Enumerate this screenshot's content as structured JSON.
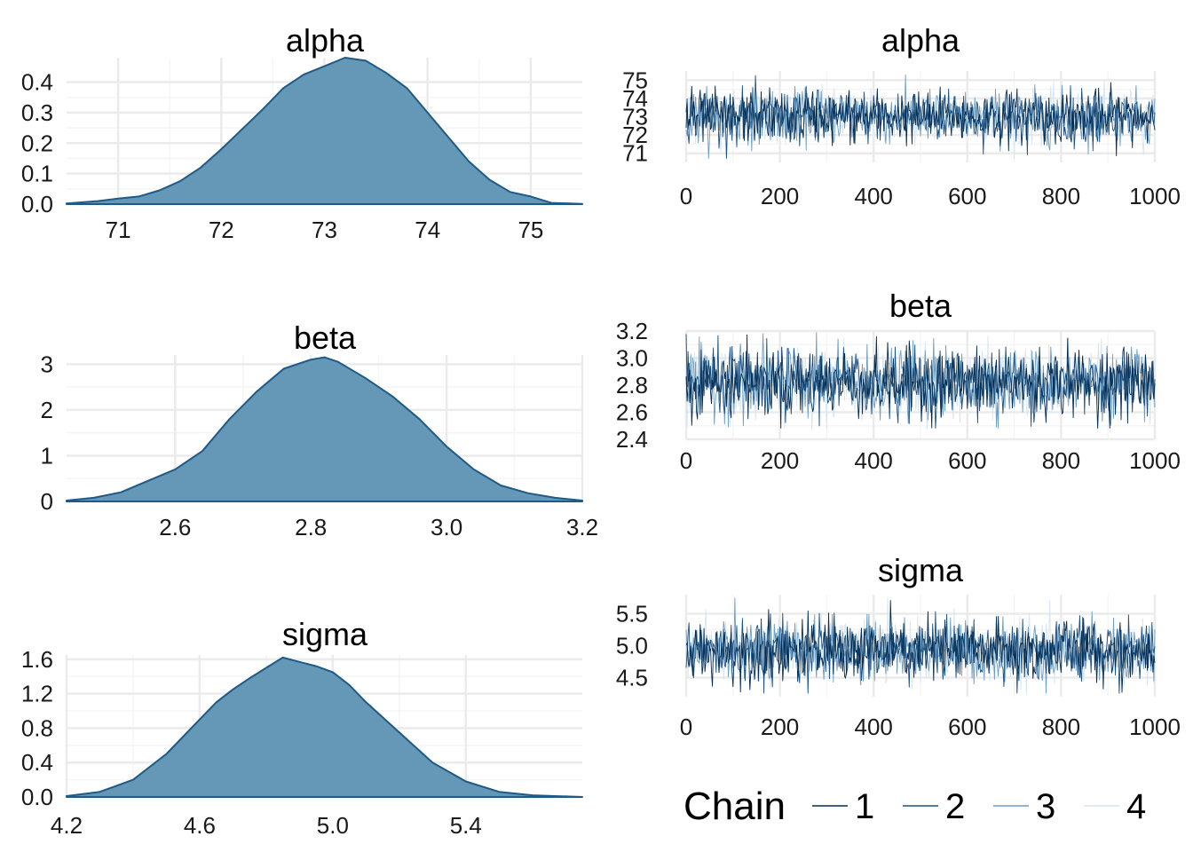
{
  "colors": {
    "density_fill": "#6498b6",
    "density_line": "#1f5a87",
    "grid_major": "#ebebeb",
    "grid_minor": "#f5f5f5",
    "axis_line": "#4d4d4d",
    "chain_1": "#022d55",
    "chain_2": "#1b5283",
    "chain_3": "#6e9ec0",
    "chain_4": "#d6e5f0"
  },
  "legend": {
    "title": "Chain",
    "items": [
      {
        "label": "1",
        "color": "#022d55"
      },
      {
        "label": "2",
        "color": "#1b5283"
      },
      {
        "label": "3",
        "color": "#6e9ec0"
      },
      {
        "label": "4",
        "color": "#d6e5f0"
      }
    ]
  },
  "chart_data": [
    {
      "type": "area",
      "title": "alpha",
      "xlim": [
        70.5,
        75.5
      ],
      "ylim": [
        0,
        0.48
      ],
      "x_ticks": [
        "71",
        "72",
        "73",
        "74",
        "75"
      ],
      "y_ticks": [
        "0.0",
        "0.1",
        "0.2",
        "0.3",
        "0.4"
      ],
      "x": [
        70.5,
        70.8,
        71.0,
        71.2,
        71.4,
        71.6,
        71.8,
        72.0,
        72.2,
        72.4,
        72.6,
        72.8,
        73.0,
        73.2,
        73.4,
        73.6,
        73.8,
        74.0,
        74.2,
        74.4,
        74.6,
        74.8,
        75.0,
        75.2,
        75.5
      ],
      "y": [
        0.002,
        0.01,
        0.018,
        0.025,
        0.045,
        0.075,
        0.12,
        0.18,
        0.245,
        0.31,
        0.38,
        0.425,
        0.452,
        0.48,
        0.47,
        0.43,
        0.38,
        0.3,
        0.22,
        0.14,
        0.08,
        0.04,
        0.025,
        0.004,
        0.001
      ]
    },
    {
      "type": "line",
      "title": "alpha",
      "xlim": [
        0,
        1000
      ],
      "ylim": [
        70.5,
        75.5
      ],
      "x_ticks": [
        "0",
        "200",
        "400",
        "600",
        "800",
        "1000"
      ],
      "y_ticks": [
        "71",
        "72",
        "73",
        "74",
        "75"
      ],
      "chain_mean": 73.0,
      "chain_sd": 0.72,
      "chain_min": 70.7,
      "chain_max": 75.3,
      "iterations": 1000,
      "chains": [
        "1",
        "2",
        "3",
        "4"
      ]
    },
    {
      "type": "area",
      "title": "beta",
      "xlim": [
        2.44,
        3.2
      ],
      "ylim": [
        0,
        3.2
      ],
      "x_ticks": [
        "2.6",
        "2.8",
        "3.0",
        "3.2"
      ],
      "y_ticks": [
        "0",
        "1",
        "2",
        "3"
      ],
      "x": [
        2.44,
        2.48,
        2.52,
        2.56,
        2.6,
        2.64,
        2.68,
        2.72,
        2.76,
        2.8,
        2.82,
        2.84,
        2.88,
        2.92,
        2.96,
        3.0,
        3.04,
        3.08,
        3.12,
        3.16,
        3.2
      ],
      "y": [
        0.02,
        0.08,
        0.2,
        0.45,
        0.7,
        1.1,
        1.8,
        2.4,
        2.9,
        3.1,
        3.15,
        3.05,
        2.7,
        2.3,
        1.8,
        1.2,
        0.7,
        0.35,
        0.18,
        0.08,
        0.02
      ]
    },
    {
      "type": "line",
      "title": "beta",
      "xlim": [
        0,
        1000
      ],
      "ylim": [
        2.4,
        3.2
      ],
      "x_ticks": [
        "0",
        "200",
        "400",
        "600",
        "800",
        "1000"
      ],
      "y_ticks": [
        "2.4",
        "2.6",
        "2.8",
        "3.0",
        "3.2"
      ],
      "chain_mean": 2.82,
      "chain_sd": 0.125,
      "chain_min": 2.48,
      "chain_max": 3.2,
      "iterations": 1000,
      "chains": [
        "1",
        "2",
        "3",
        "4"
      ]
    },
    {
      "type": "area",
      "title": "sigma",
      "xlim": [
        4.2,
        5.75
      ],
      "ylim": [
        0,
        1.65
      ],
      "x_ticks": [
        "4.2",
        "4.6",
        "5.0",
        "5.4"
      ],
      "y_ticks": [
        "0.0",
        "0.4",
        "0.8",
        "1.2",
        "1.6"
      ],
      "x": [
        4.2,
        4.3,
        4.4,
        4.5,
        4.6,
        4.65,
        4.7,
        4.75,
        4.8,
        4.85,
        4.9,
        4.95,
        5.0,
        5.05,
        5.1,
        5.2,
        5.3,
        5.4,
        5.5,
        5.6,
        5.75
      ],
      "y": [
        0.01,
        0.06,
        0.2,
        0.5,
        0.9,
        1.1,
        1.25,
        1.38,
        1.5,
        1.62,
        1.57,
        1.52,
        1.45,
        1.3,
        1.1,
        0.75,
        0.4,
        0.18,
        0.06,
        0.02,
        0.0
      ]
    },
    {
      "type": "line",
      "title": "sigma",
      "xlim": [
        0,
        1000
      ],
      "ylim": [
        4.2,
        5.8
      ],
      "x_ticks": [
        "0",
        "200",
        "400",
        "600",
        "800",
        "1000"
      ],
      "y_ticks": [
        "4.5",
        "5.0",
        "5.5"
      ],
      "chain_mean": 4.92,
      "chain_sd": 0.24,
      "chain_min": 4.25,
      "chain_max": 5.75,
      "iterations": 1000,
      "chains": [
        "1",
        "2",
        "3",
        "4"
      ]
    }
  ]
}
